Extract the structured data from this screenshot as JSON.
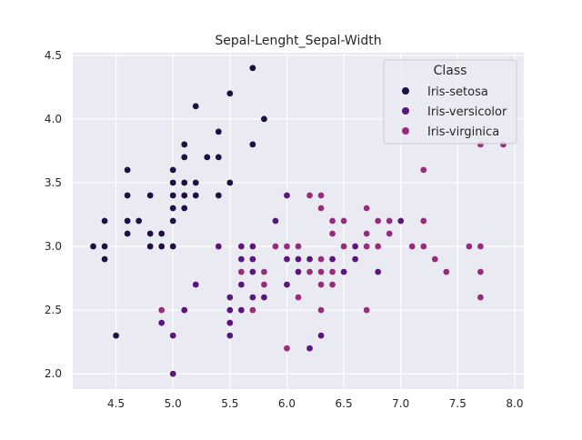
{
  "chart_data": {
    "type": "scatter",
    "title": "Sepal-Lenght_Sepal-Width",
    "xlabel": "",
    "ylabel": "",
    "xlim": [
      4.12,
      8.08
    ],
    "ylim": [
      1.88,
      4.52
    ],
    "xticks": [
      4.5,
      5.0,
      5.5,
      6.0,
      6.5,
      7.0,
      7.5,
      8.0
    ],
    "yticks": [
      2.0,
      2.5,
      3.0,
      3.5,
      4.0,
      4.5
    ],
    "grid": true,
    "legend": {
      "title": "Class",
      "placement": "top-right"
    },
    "series": [
      {
        "name": "Iris-setosa",
        "color": "#1c1044",
        "x": [
          5.1,
          4.9,
          4.7,
          4.6,
          5.0,
          5.4,
          4.6,
          5.0,
          4.4,
          4.9,
          5.4,
          4.8,
          4.8,
          4.3,
          5.8,
          5.7,
          5.4,
          5.1,
          5.7,
          5.1,
          5.4,
          5.1,
          4.6,
          5.1,
          4.8,
          5.0,
          5.0,
          5.2,
          5.2,
          4.7,
          4.8,
          5.4,
          5.2,
          5.5,
          4.9,
          5.0,
          5.5,
          4.9,
          4.4,
          5.1,
          5.0,
          4.5,
          4.4,
          5.0,
          5.1,
          4.8,
          5.1,
          4.6,
          5.3,
          5.0
        ],
        "y": [
          3.5,
          3.0,
          3.2,
          3.1,
          3.6,
          3.9,
          3.4,
          3.4,
          2.9,
          3.1,
          3.7,
          3.4,
          3.0,
          3.0,
          4.0,
          4.4,
          3.9,
          3.5,
          3.8,
          3.8,
          3.4,
          3.7,
          3.6,
          3.3,
          3.4,
          3.0,
          3.4,
          3.5,
          3.4,
          3.2,
          3.1,
          3.4,
          4.1,
          4.2,
          3.1,
          3.2,
          3.5,
          3.1,
          3.0,
          3.4,
          3.5,
          2.3,
          3.2,
          3.5,
          3.8,
          3.0,
          3.8,
          3.2,
          3.7,
          3.3
        ]
      },
      {
        "name": "Iris-versicolor",
        "color": "#5a167e",
        "x": [
          7.0,
          6.4,
          6.9,
          5.5,
          6.5,
          5.7,
          6.3,
          4.9,
          6.6,
          5.2,
          5.0,
          5.9,
          6.0,
          6.1,
          5.6,
          6.7,
          5.6,
          5.8,
          6.2,
          5.6,
          5.9,
          6.1,
          6.3,
          6.1,
          6.4,
          6.6,
          6.8,
          6.7,
          6.0,
          5.7,
          5.5,
          5.5,
          5.8,
          6.0,
          5.4,
          6.0,
          6.7,
          6.3,
          5.6,
          5.5,
          5.5,
          6.1,
          5.8,
          5.0,
          5.6,
          5.7,
          5.7,
          6.2,
          5.1,
          5.7
        ],
        "y": [
          3.2,
          3.2,
          3.1,
          2.3,
          2.8,
          2.8,
          3.3,
          2.4,
          2.9,
          2.7,
          2.0,
          3.0,
          2.2,
          2.9,
          2.9,
          3.1,
          3.0,
          2.7,
          2.2,
          2.5,
          3.2,
          2.8,
          2.5,
          2.8,
          2.9,
          3.0,
          2.8,
          3.0,
          2.9,
          2.6,
          2.4,
          2.4,
          2.7,
          2.7,
          3.0,
          3.4,
          3.1,
          2.3,
          3.0,
          2.5,
          2.6,
          3.0,
          2.6,
          2.3,
          2.7,
          3.0,
          2.9,
          2.9,
          2.5,
          2.8
        ]
      },
      {
        "name": "Iris-virginica",
        "color": "#962c7c",
        "x": [
          6.3,
          5.8,
          7.1,
          6.3,
          6.5,
          7.6,
          4.9,
          7.3,
          6.7,
          7.2,
          6.5,
          6.4,
          6.8,
          5.7,
          5.8,
          6.4,
          6.5,
          7.7,
          7.7,
          6.0,
          6.9,
          5.6,
          7.7,
          6.3,
          6.7,
          7.2,
          6.2,
          6.1,
          6.4,
          7.2,
          7.4,
          7.9,
          6.4,
          6.3,
          6.1,
          7.7,
          6.3,
          6.4,
          6.0,
          6.9,
          6.7,
          6.9,
          5.8,
          6.8,
          6.7,
          6.7,
          6.3,
          6.5,
          6.2,
          5.9
        ],
        "y": [
          3.3,
          2.7,
          3.0,
          2.9,
          3.0,
          3.0,
          2.5,
          2.9,
          2.5,
          3.6,
          3.2,
          2.7,
          3.0,
          2.5,
          2.8,
          3.2,
          3.0,
          3.8,
          2.6,
          2.2,
          3.2,
          2.8,
          2.8,
          2.7,
          3.3,
          3.2,
          2.8,
          3.0,
          2.8,
          3.0,
          2.8,
          3.8,
          2.8,
          2.8,
          2.6,
          3.0,
          3.4,
          3.1,
          3.0,
          3.1,
          3.1,
          3.1,
          2.7,
          3.2,
          3.3,
          3.0,
          2.5,
          3.0,
          3.4,
          3.0
        ]
      }
    ]
  }
}
